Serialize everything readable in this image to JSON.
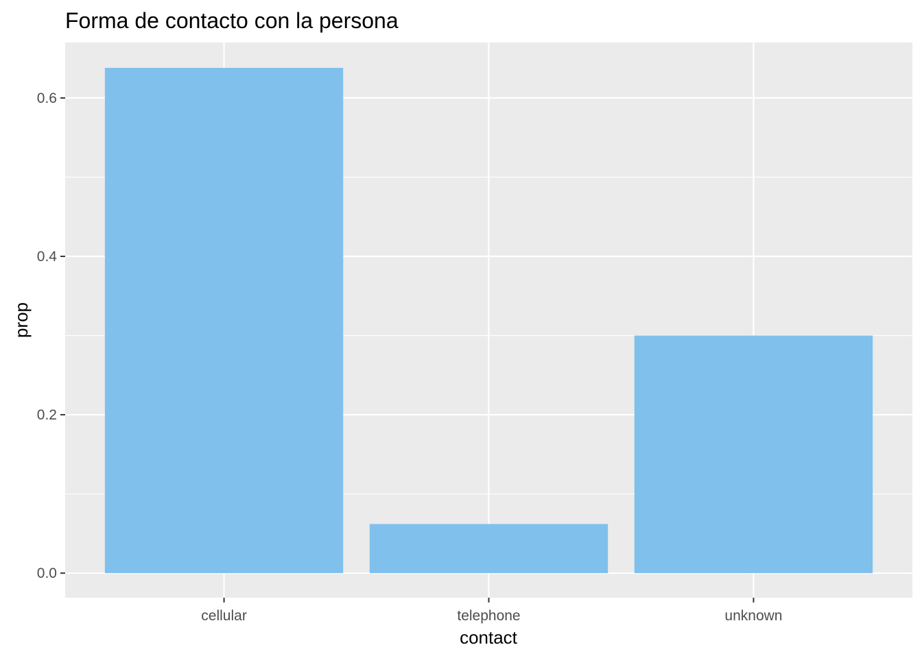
{
  "chart_data": {
    "type": "bar",
    "title": "Forma de contacto con la persona",
    "xlabel": "contact",
    "ylabel": "prop",
    "categories": [
      "cellular",
      "telephone",
      "unknown"
    ],
    "values": [
      0.638,
      0.062,
      0.3
    ],
    "ylim": [
      -0.031,
      0.67
    ],
    "yticks": [
      0.0,
      0.2,
      0.4,
      0.6
    ],
    "ytick_labels": [
      "0.0",
      "0.2",
      "0.4",
      "0.6"
    ],
    "grid": true,
    "bar_color": "#7FC0ED",
    "panel_background": "#EBEBEB"
  }
}
